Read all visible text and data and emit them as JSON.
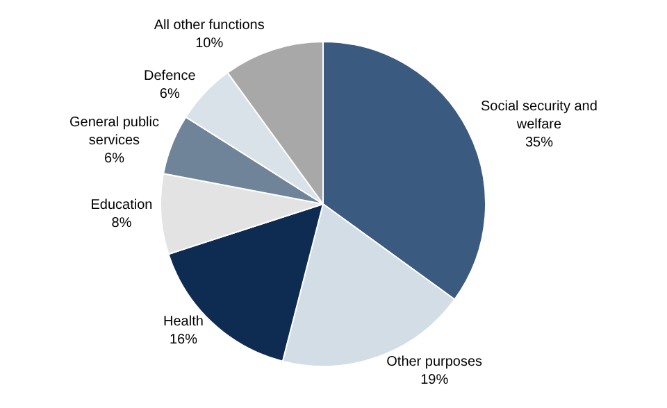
{
  "chart_data": {
    "type": "pie",
    "categories": [
      "Social security and welfare",
      "Other purposes",
      "Health",
      "Education",
      "General public services",
      "Defence",
      "All other functions"
    ],
    "values": [
      35,
      19,
      16,
      8,
      6,
      6,
      10
    ],
    "value_labels": [
      "35%",
      "19%",
      "16%",
      "8%",
      "6%",
      "6%",
      "10%"
    ],
    "colors": [
      "#3b5a7f",
      "#d3dde5",
      "#0e2b52",
      "#e3e3e3",
      "#6f8399",
      "#d9e2e9",
      "#a8a8a8"
    ],
    "legend": false
  }
}
